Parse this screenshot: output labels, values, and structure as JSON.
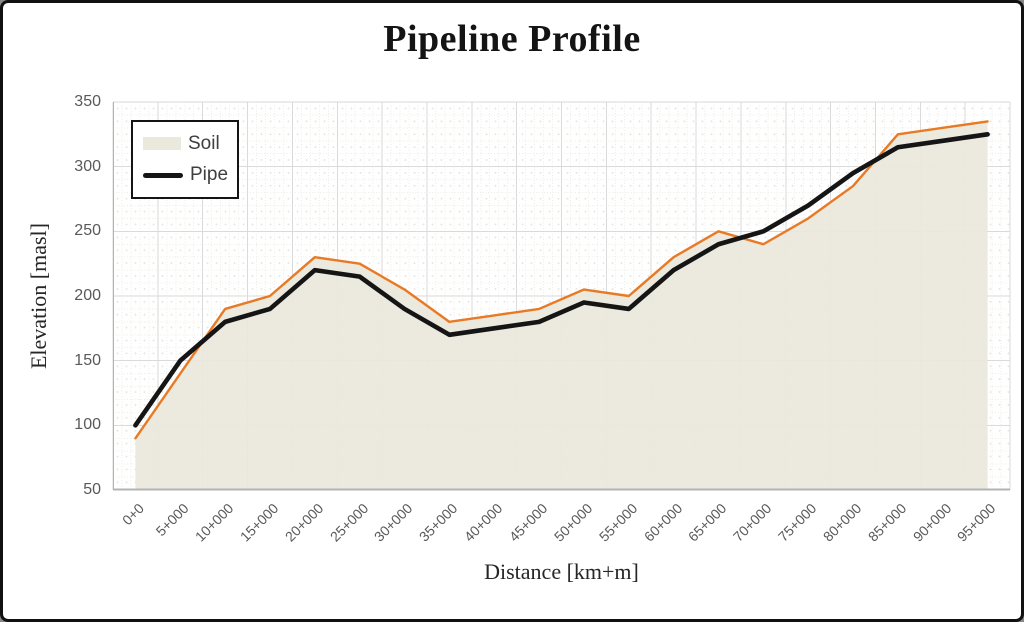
{
  "chart_data": {
    "type": "area",
    "title": "Pipeline Profile",
    "xlabel": "Distance [km+m]",
    "ylabel": "Elevation [masl]",
    "categories": [
      "0+0",
      "5+000",
      "10+000",
      "15+000",
      "20+000",
      "25+000",
      "30+000",
      "35+000",
      "40+000",
      "45+000",
      "50+000",
      "55+000",
      "60+000",
      "65+000",
      "70+000",
      "75+000",
      "80+000",
      "85+000",
      "90+000",
      "95+000"
    ],
    "series": [
      {
        "name": "Soil",
        "type": "area",
        "line_color": "#e87a25",
        "fill_color": "#ebe8dc",
        "values": [
          90,
          140,
          190,
          200,
          230,
          225,
          205,
          180,
          185,
          190,
          205,
          200,
          230,
          250,
          240,
          260,
          285,
          325,
          330,
          335
        ]
      },
      {
        "name": "Pipe",
        "type": "line",
        "line_color": "#151515",
        "values": [
          100,
          150,
          180,
          190,
          220,
          215,
          190,
          170,
          175,
          180,
          195,
          190,
          220,
          240,
          250,
          270,
          295,
          315,
          320,
          325
        ]
      }
    ],
    "ylim": [
      50,
      350
    ],
    "ytick_step": 50,
    "yticks": [
      50,
      100,
      150,
      200,
      250,
      300,
      350
    ],
    "grid": "major and minor gridlines on",
    "legend_position": "top-left inside plot",
    "colors": {
      "major_grid": "#dadada",
      "minor_grid": "#edece6",
      "axis_line": "#b3b3b3",
      "tick_text": "#595959",
      "title_text": "#141414"
    }
  }
}
